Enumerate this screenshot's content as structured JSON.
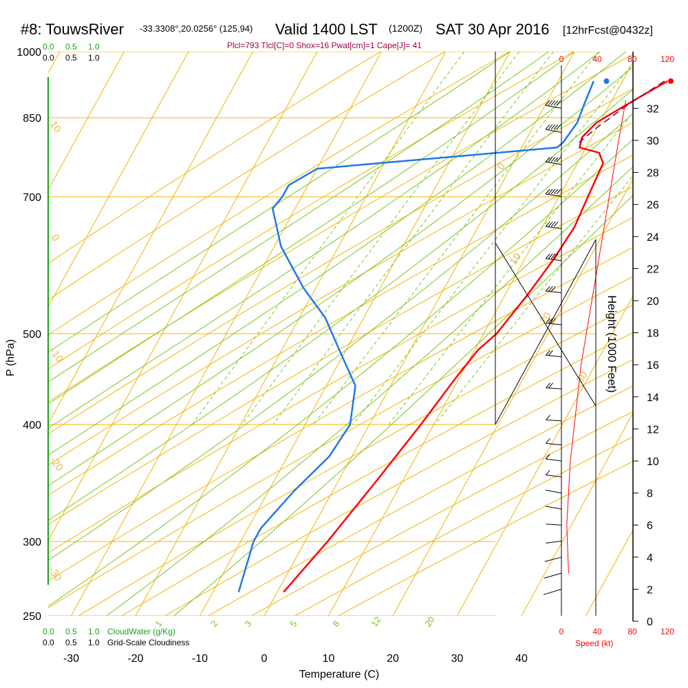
{
  "header": {
    "station": "#8: TouwsRiver",
    "coords": "-33.3308°,20.0256° (125,94)",
    "valid": "Valid 1400 LST",
    "zulu": "(1200Z)",
    "date": "SAT 30 Apr 2016",
    "forecast": "[12hrFcst@0432z]"
  },
  "params_line": "Plcl=793 Tlcl[C]=0 Shox=16 Pwat[cm]=1 Cape[J]= 41",
  "cloud_scale": {
    "top_green": [
      "0.0",
      "0.5",
      "1.0"
    ],
    "top_black": [
      "0.0",
      "0.5",
      "1.0"
    ],
    "bottom_green": [
      "0.0",
      "0.5",
      "1.0"
    ],
    "bottom_green_label": "CloudWater (g/Kg)",
    "bottom_black": [
      "0.0",
      "0.5",
      "1.0"
    ],
    "bottom_black_label": "Grid-Scale Cloudiness"
  },
  "wind_speed_scale": {
    "ticks": [
      "0",
      "40",
      "80",
      "120"
    ],
    "label": "Speed (kt)"
  },
  "colors": {
    "isobar": "#f0b400",
    "dry_adiabat": "#f0b400",
    "moist_adiabat": "#7bc41e",
    "mixing_ratio": "#7bc41e",
    "temperature": "#ff0000",
    "dewpoint": "#1e78e6",
    "parcel": "#7a0040",
    "wind_speed": "#ff0000",
    "params": "#a0004a"
  },
  "chart_data": {
    "type": "line",
    "subtype": "skew-T log-P sounding",
    "xlabel": "Temperature (C)",
    "ylabel": "P (hPa)",
    "y2label": "Height (1000 Feet)",
    "x_ticks": [
      -30,
      -20,
      -10,
      0,
      10,
      20,
      30,
      40
    ],
    "p_ticks": [
      250,
      300,
      400,
      500,
      700,
      850,
      1000
    ],
    "height_ticks": [
      0,
      2,
      4,
      6,
      8,
      10,
      12,
      14,
      16,
      18,
      20,
      22,
      24,
      26,
      28,
      30,
      32
    ],
    "dry_adiabat_labels": [
      "10",
      "0",
      "-10",
      "-20",
      "-30",
      "0",
      "10",
      "20",
      "30"
    ],
    "mixing_ratio_labels": [
      "1",
      "2",
      "3",
      "5",
      "8",
      "12",
      "20"
    ],
    "surface_temperature_c": 17.5,
    "surface_dewpoint_c": 7.5,
    "temperature_profile": [
      {
        "p": 930,
        "t": 17.0
      },
      {
        "p": 900,
        "t": 14.5
      },
      {
        "p": 870,
        "t": 12.0
      },
      {
        "p": 840,
        "t": 9.5
      },
      {
        "p": 810,
        "t": 8.5
      },
      {
        "p": 790,
        "t": 9.0
      },
      {
        "p": 780,
        "t": 12.5
      },
      {
        "p": 760,
        "t": 14.0
      },
      {
        "p": 700,
        "t": 14.5
      },
      {
        "p": 650,
        "t": 15.0
      },
      {
        "p": 600,
        "t": 14.5
      },
      {
        "p": 550,
        "t": 13.5
      },
      {
        "p": 500,
        "t": 12.0
      },
      {
        "p": 480,
        "t": 10.5
      },
      {
        "p": 450,
        "t": 9.5
      },
      {
        "p": 400,
        "t": 8.0
      },
      {
        "p": 350,
        "t": 6.0
      },
      {
        "p": 300,
        "t": 3.5
      },
      {
        "p": 265,
        "t": 1.0
      }
    ],
    "dewpoint_profile": [
      {
        "p": 930,
        "t": 5.5
      },
      {
        "p": 880,
        "t": 6.0
      },
      {
        "p": 840,
        "t": 6.5
      },
      {
        "p": 800,
        "t": 6.0
      },
      {
        "p": 790,
        "t": 5.5
      },
      {
        "p": 750,
        "t": -30.0
      },
      {
        "p": 720,
        "t": -33.0
      },
      {
        "p": 700,
        "t": -33.0
      },
      {
        "p": 680,
        "t": -33.5
      },
      {
        "p": 620,
        "t": -29.0
      },
      {
        "p": 560,
        "t": -22.0
      },
      {
        "p": 520,
        "t": -16.0
      },
      {
        "p": 480,
        "t": -11.0
      },
      {
        "p": 440,
        "t": -5.5
      },
      {
        "p": 400,
        "t": -3.0
      },
      {
        "p": 370,
        "t": -3.5
      },
      {
        "p": 340,
        "t": -6.0
      },
      {
        "p": 310,
        "t": -8.0
      },
      {
        "p": 300,
        "t": -8.0
      },
      {
        "p": 265,
        "t": -6.0
      }
    ],
    "parcel_profile": [
      {
        "p": 930,
        "t": 16.5
      },
      {
        "p": 880,
        "t": 13.0
      },
      {
        "p": 830,
        "t": 10.0
      },
      {
        "p": 800,
        "t": 8.5
      }
    ],
    "wind_speed_profile": [
      {
        "h": 3,
        "kt": 8
      },
      {
        "h": 6,
        "kt": 6
      },
      {
        "h": 8,
        "kt": 8
      },
      {
        "h": 10,
        "kt": 10
      },
      {
        "h": 12,
        "kt": 14
      },
      {
        "h": 14,
        "kt": 18
      },
      {
        "h": 16,
        "kt": 22
      },
      {
        "h": 18,
        "kt": 28
      },
      {
        "h": 20,
        "kt": 34
      },
      {
        "h": 22,
        "kt": 40
      },
      {
        "h": 24,
        "kt": 46
      },
      {
        "h": 26,
        "kt": 52
      },
      {
        "h": 28,
        "kt": 58
      },
      {
        "h": 30,
        "kt": 64
      },
      {
        "h": 32.5,
        "kt": 72
      }
    ],
    "wind_barbs": [
      {
        "h": 2,
        "dir": 200,
        "kt": 8
      },
      {
        "h": 3,
        "dir": 210,
        "kt": 8
      },
      {
        "h": 4,
        "dir": 220,
        "kt": 6
      },
      {
        "h": 5,
        "dir": 250,
        "kt": 5
      },
      {
        "h": 6,
        "dir": 280,
        "kt": 5
      },
      {
        "h": 7,
        "dir": 300,
        "kt": 6
      },
      {
        "h": 8,
        "dir": 300,
        "kt": 8
      },
      {
        "h": 9,
        "dir": 290,
        "kt": 10
      },
      {
        "h": 10,
        "dir": 290,
        "kt": 12
      },
      {
        "h": 11,
        "dir": 285,
        "kt": 14
      },
      {
        "h": 12.5,
        "dir": 280,
        "kt": 18
      },
      {
        "h": 14.5,
        "dir": 280,
        "kt": 22
      },
      {
        "h": 16.5,
        "dir": 285,
        "kt": 28
      },
      {
        "h": 18.5,
        "dir": 285,
        "kt": 32
      },
      {
        "h": 20.5,
        "dir": 285,
        "kt": 36
      },
      {
        "h": 22.5,
        "dir": 290,
        "kt": 40
      },
      {
        "h": 24.5,
        "dir": 290,
        "kt": 45
      },
      {
        "h": 26.5,
        "dir": 295,
        "kt": 50
      },
      {
        "h": 28.5,
        "dir": 295,
        "kt": 55
      },
      {
        "h": 30.5,
        "dir": 300,
        "kt": 60
      },
      {
        "h": 32,
        "dir": 300,
        "kt": 65
      }
    ]
  }
}
